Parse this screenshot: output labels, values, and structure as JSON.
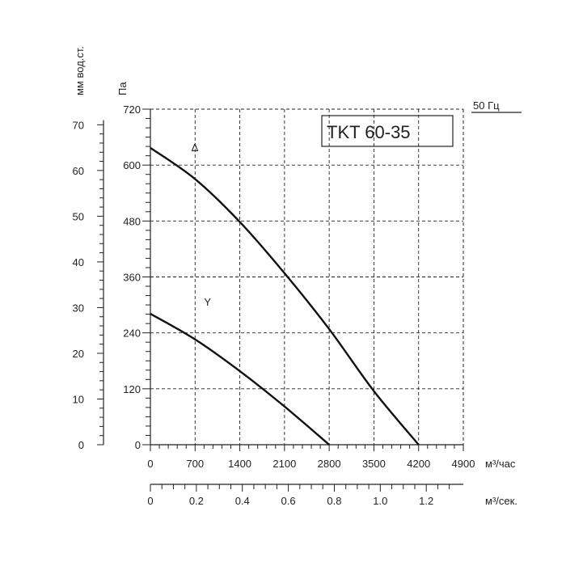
{
  "chart_data": {
    "type": "line",
    "model": "TKT 60-35",
    "frequency_label": "50 Гц",
    "y_left_unit": "мм вод.ст.",
    "y_right_unit": "Па",
    "x_unit_top": "м³/час",
    "x_unit_bottom": "м³/сек.",
    "y_pa_ticks": [
      "720",
      "600",
      "480",
      "360",
      "240",
      "120",
      "0"
    ],
    "y_mm_ticks": [
      "70",
      "60",
      "50",
      "40",
      "30",
      "20",
      "10",
      "0"
    ],
    "x_m3h_ticks": [
      "0",
      "700",
      "1400",
      "2100",
      "2800",
      "3500",
      "4200",
      "4900"
    ],
    "x_m3s_ticks": [
      "0",
      "0.2",
      "0.4",
      "0.6",
      "0.8",
      "1.0",
      "1.2"
    ],
    "xlim": [
      0,
      4900
    ],
    "ylim": [
      0,
      720
    ],
    "series": [
      {
        "name": "Δ",
        "x": [
          0,
          700,
          1400,
          2100,
          2800,
          3500,
          4200
        ],
        "y": [
          637,
          570,
          478,
          368,
          248,
          115,
          0
        ]
      },
      {
        "name": "Y",
        "x": [
          0,
          700,
          1400,
          2100,
          2800
        ],
        "y": [
          281,
          226,
          158,
          82,
          0
        ]
      }
    ]
  }
}
